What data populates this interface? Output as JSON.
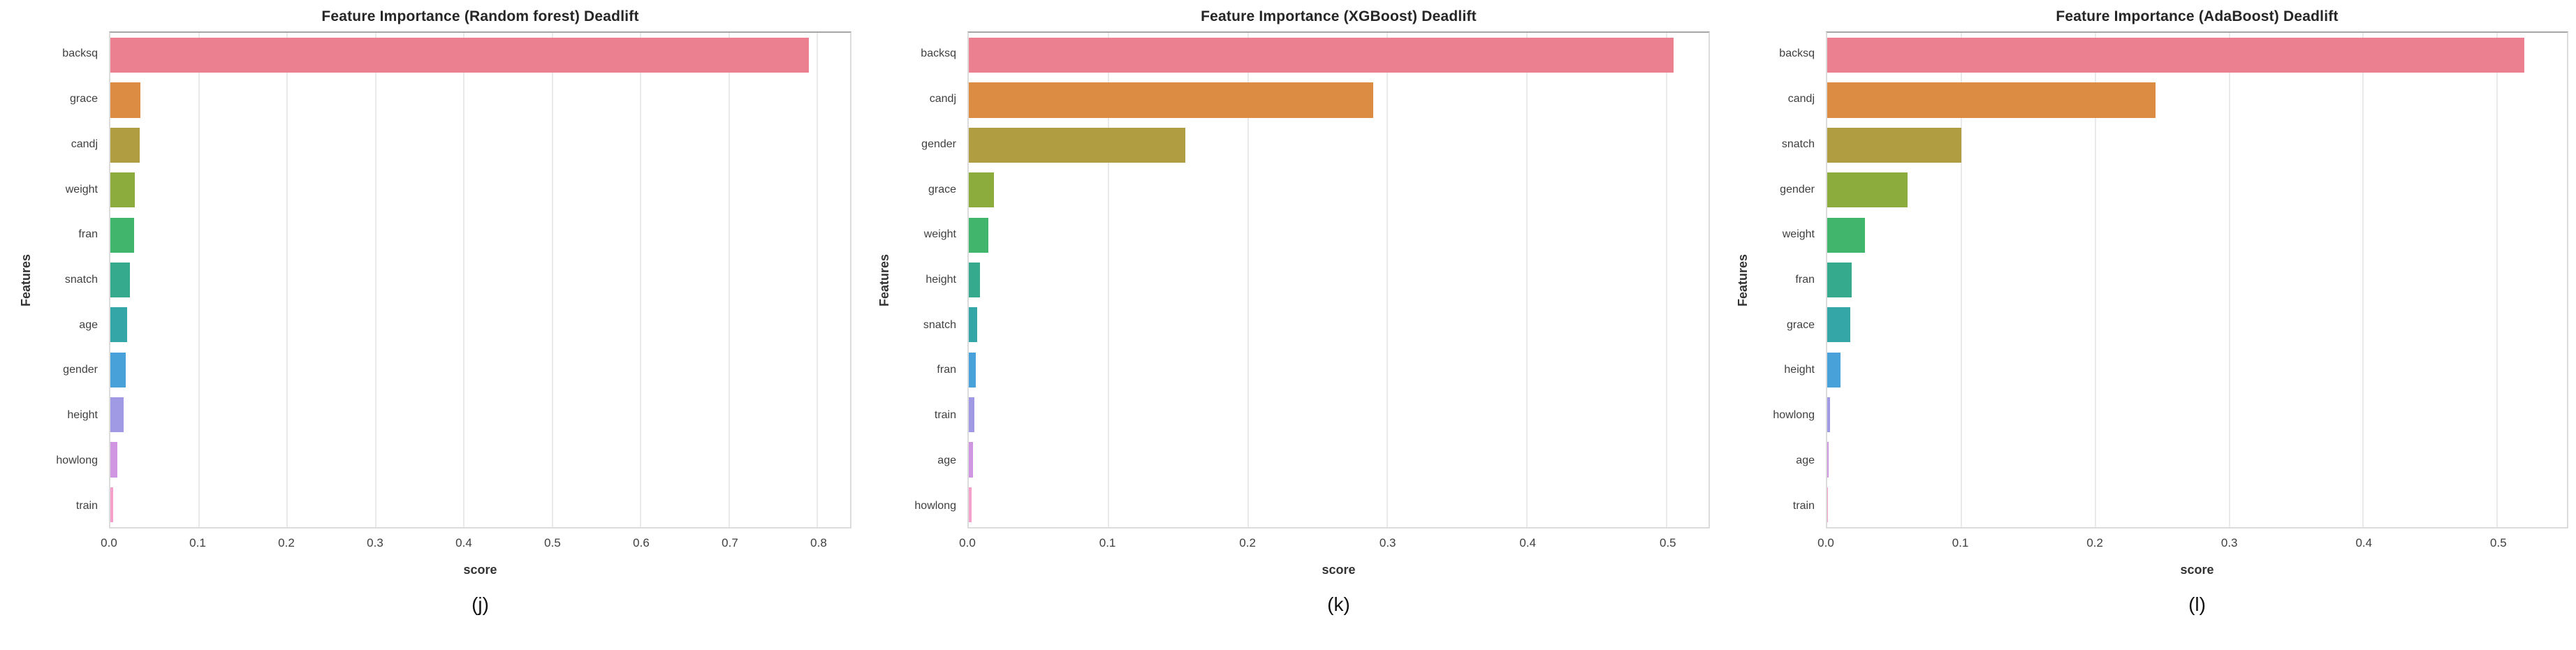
{
  "palette": [
    "#ea8090",
    "#dd8c43",
    "#b09d42",
    "#8cad3e",
    "#41b56b",
    "#35aa8c",
    "#35a6a8",
    "#48a1d9",
    "#a09ae4",
    "#d096e2",
    "#f4a0ca"
  ],
  "chart_data": [
    {
      "type": "bar",
      "orientation": "horizontal",
      "title": "Feature Importance (Random forest) Deadlift",
      "xlabel": "score",
      "ylabel": "Features",
      "caption": "(j)",
      "xlim": [
        0,
        0.837
      ],
      "xticks": [
        0.0,
        0.1,
        0.2,
        0.3,
        0.4,
        0.5,
        0.6,
        0.7,
        0.8
      ],
      "grid": true,
      "legend": false,
      "categories": [
        "backsq",
        "grace",
        "candj",
        "weight",
        "fran",
        "snatch",
        "age",
        "gender",
        "height",
        "howlong",
        "train"
      ],
      "values": [
        0.79,
        0.034,
        0.033,
        0.028,
        0.027,
        0.022,
        0.019,
        0.017,
        0.015,
        0.008,
        0.003
      ]
    },
    {
      "type": "bar",
      "orientation": "horizontal",
      "title": "Feature Importance (XGBoost) Deadlift",
      "xlabel": "score",
      "ylabel": "Features",
      "caption": "(k)",
      "xlim": [
        0,
        0.53
      ],
      "xticks": [
        0.0,
        0.1,
        0.2,
        0.3,
        0.4,
        0.5
      ],
      "grid": true,
      "legend": false,
      "categories": [
        "backsq",
        "candj",
        "gender",
        "grace",
        "weight",
        "height",
        "snatch",
        "fran",
        "train",
        "age",
        "howlong"
      ],
      "values": [
        0.505,
        0.29,
        0.155,
        0.018,
        0.014,
        0.008,
        0.006,
        0.005,
        0.004,
        0.003,
        0.002
      ]
    },
    {
      "type": "bar",
      "orientation": "horizontal",
      "title": "Feature Importance (AdaBoost) Deadlift",
      "xlabel": "score",
      "ylabel": "Features",
      "caption": "(l)",
      "xlim": [
        0,
        0.552
      ],
      "xticks": [
        0.0,
        0.1,
        0.2,
        0.3,
        0.4,
        0.5
      ],
      "grid": true,
      "legend": false,
      "categories": [
        "backsq",
        "candj",
        "snatch",
        "gender",
        "weight",
        "fran",
        "grace",
        "height",
        "howlong",
        "age",
        "train"
      ],
      "values": [
        0.52,
        0.245,
        0.1,
        0.06,
        0.028,
        0.018,
        0.017,
        0.01,
        0.002,
        0.001,
        0.0005
      ]
    }
  ]
}
